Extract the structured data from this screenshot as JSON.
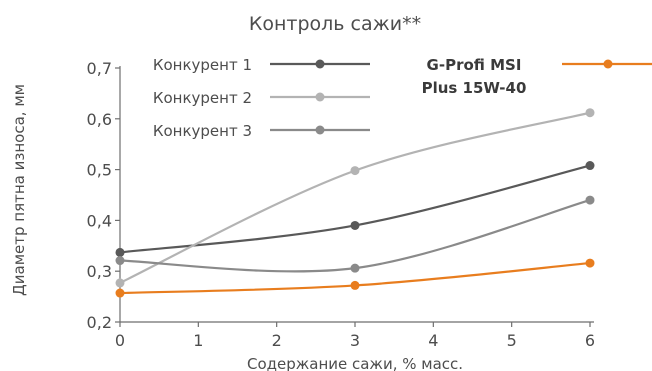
{
  "chart_data": {
    "type": "line",
    "title": "Контроль сажи**",
    "xlabel": "Содержание сажи, % масс.",
    "ylabel": "Диаметр пятна износа, мм",
    "xlim": [
      0,
      6
    ],
    "ylim": [
      0.2,
      0.7
    ],
    "x_ticks": [
      "0",
      "1",
      "2",
      "3",
      "4",
      "5",
      "6"
    ],
    "y_ticks": [
      "0,2",
      "0,3",
      "0,4",
      "0,5",
      "0,6",
      "0,7"
    ],
    "grid": false,
    "legend_position": "top",
    "series": [
      {
        "name": "Конкурент 1",
        "color": "#595959",
        "x": [
          0,
          3,
          6
        ],
        "y": [
          0.337,
          0.39,
          0.508
        ]
      },
      {
        "name": "Конкурент 2",
        "color": "#b3b3b3",
        "x": [
          0,
          3,
          6
        ],
        "y": [
          0.277,
          0.498,
          0.612
        ]
      },
      {
        "name": "Конкурент 3",
        "color": "#8a8a8a",
        "x": [
          0,
          3,
          6
        ],
        "y": [
          0.321,
          0.306,
          0.44
        ]
      },
      {
        "name": "G-Profi MSI Plus 15W-40",
        "color": "#e87d1e",
        "x": [
          0,
          3,
          6
        ],
        "y": [
          0.257,
          0.272,
          0.316
        ]
      }
    ]
  }
}
